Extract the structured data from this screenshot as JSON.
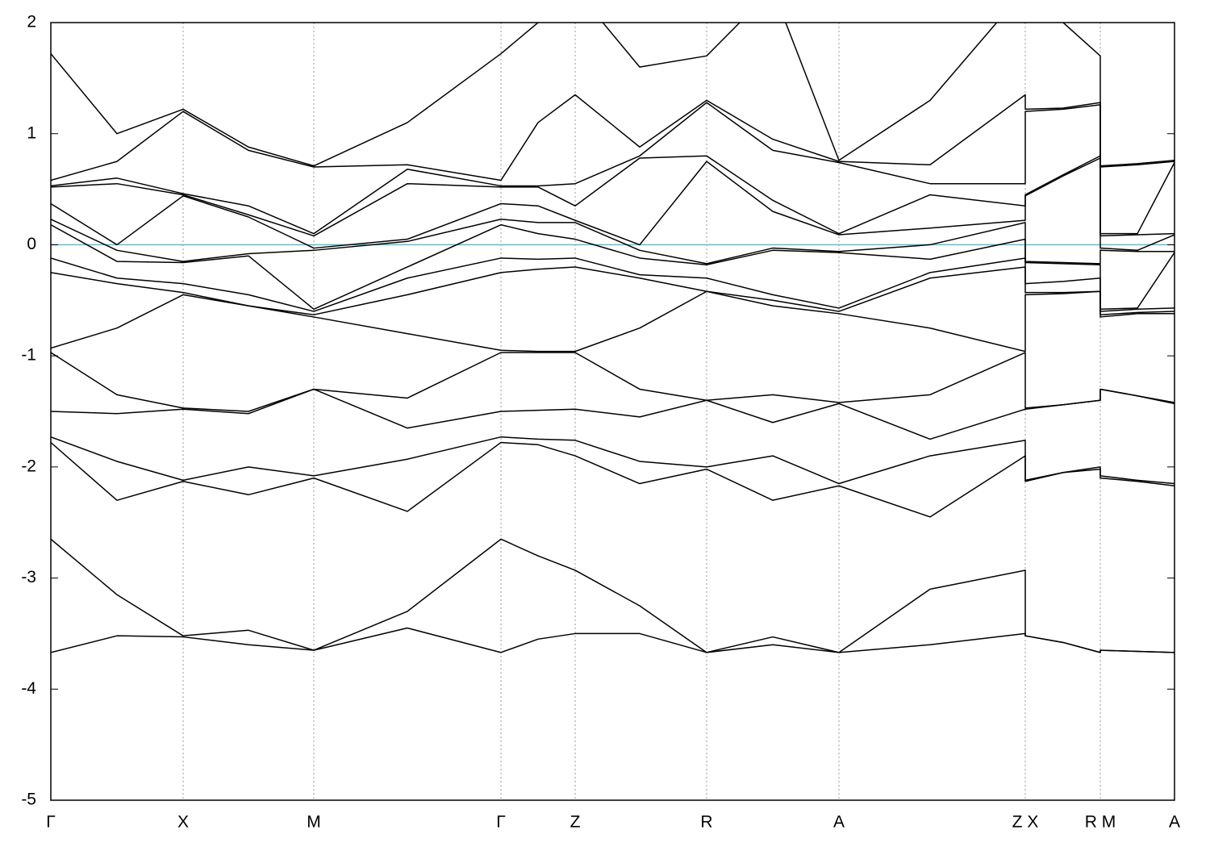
{
  "chart_data": {
    "type": "line",
    "x": [
      0,
      0.82,
      1.64,
      2.45,
      3.26,
      4.42,
      5.58,
      6.04,
      6.5,
      7.3,
      8.13,
      8.95,
      9.77,
      10.9,
      12.08,
      12.08,
      12.55,
      13.01,
      13.01,
      13.47,
      13.93
    ],
    "xlim": [
      0,
      13.93
    ],
    "xticks": [
      {
        "value": 0,
        "label": "Γ"
      },
      {
        "value": 1.64,
        "label": "X"
      },
      {
        "value": 3.26,
        "label": "M"
      },
      {
        "value": 5.58,
        "label": "Γ"
      },
      {
        "value": 6.5,
        "label": "Z"
      },
      {
        "value": 8.13,
        "label": "R"
      },
      {
        "value": 9.77,
        "label": "A"
      },
      {
        "value": 12.08,
        "label": "Z X"
      },
      {
        "value": 13.01,
        "label": "R M"
      },
      {
        "value": 13.93,
        "label": "A"
      }
    ],
    "ylim": [
      -5,
      2
    ],
    "yticks": [
      -5,
      -4,
      -3,
      -2,
      -1,
      0,
      1,
      2
    ],
    "xgrid": true,
    "fermi_level": {
      "y": 0,
      "color": "#6bb7c8"
    },
    "series": [
      {
        "color": "#000000",
        "values": [
          -3.67,
          -3.52,
          -3.53,
          -3.6,
          -3.65,
          -3.45,
          -3.67,
          -3.55,
          -3.5,
          -3.5,
          -3.67,
          -3.6,
          -3.67,
          -3.6,
          -3.5,
          -3.52,
          -3.58,
          -3.67,
          -3.65,
          -3.66,
          -3.67
        ]
      },
      {
        "color": "#000000",
        "values": [
          -2.65,
          -3.15,
          -3.52,
          -3.47,
          -3.65,
          -3.3,
          -2.65,
          -2.8,
          -2.93,
          -3.25,
          -3.67,
          -3.53,
          -3.67,
          -3.1,
          -2.93,
          -3.52,
          -3.58,
          -3.67,
          -3.65,
          -3.66,
          -3.67
        ]
      },
      {
        "color": "#000000",
        "values": [
          -1.78,
          -2.3,
          -2.13,
          -2.25,
          -2.1,
          -2.4,
          -1.78,
          -1.8,
          -1.9,
          -2.15,
          -2.02,
          -2.3,
          -2.17,
          -2.45,
          -1.9,
          -2.13,
          -2.05,
          -2.02,
          -2.1,
          -2.13,
          -2.17
        ]
      },
      {
        "color": "#000000",
        "values": [
          -1.73,
          -1.95,
          -2.12,
          -2.0,
          -2.08,
          -1.93,
          -1.73,
          -1.75,
          -1.76,
          -1.95,
          -2.0,
          -1.9,
          -2.15,
          -1.9,
          -1.76,
          -2.12,
          -2.05,
          -2.0,
          -2.08,
          -2.12,
          -2.15
        ]
      },
      {
        "color": "#000000",
        "values": [
          -1.5,
          -1.52,
          -1.48,
          -1.52,
          -1.3,
          -1.65,
          -1.5,
          -1.49,
          -1.48,
          -1.55,
          -1.4,
          -1.6,
          -1.43,
          -1.75,
          -1.48,
          -1.48,
          -1.44,
          -1.4,
          -1.3,
          -1.36,
          -1.43
        ]
      },
      {
        "color": "#000000",
        "values": [
          -0.97,
          -1.35,
          -1.47,
          -1.5,
          -1.3,
          -1.38,
          -0.97,
          -0.97,
          -0.97,
          -1.3,
          -1.4,
          -1.35,
          -1.42,
          -1.35,
          -0.97,
          -1.47,
          -1.44,
          -1.4,
          -1.3,
          -1.36,
          -1.42
        ]
      },
      {
        "color": "#000000",
        "values": [
          -0.93,
          -0.75,
          -0.45,
          -0.55,
          -0.65,
          -0.8,
          -0.95,
          -0.96,
          -0.96,
          -0.75,
          -0.42,
          -0.55,
          -0.62,
          -0.75,
          -0.96,
          -0.45,
          -0.44,
          -0.42,
          -0.65,
          -0.62,
          -0.62
        ]
      },
      {
        "color": "#000000",
        "values": [
          -0.25,
          -0.35,
          -0.43,
          -0.55,
          -0.63,
          -0.45,
          -0.25,
          -0.22,
          -0.2,
          -0.3,
          -0.42,
          -0.5,
          -0.6,
          -0.3,
          -0.2,
          -0.43,
          -0.43,
          -0.42,
          -0.63,
          -0.61,
          -0.6
        ]
      },
      {
        "color": "#000000",
        "values": [
          -0.12,
          -0.3,
          -0.35,
          -0.45,
          -0.6,
          -0.3,
          -0.12,
          -0.13,
          -0.12,
          -0.27,
          -0.3,
          -0.45,
          -0.57,
          -0.25,
          -0.12,
          -0.35,
          -0.33,
          -0.3,
          -0.6,
          -0.58,
          -0.57
        ]
      },
      {
        "color": "#000000",
        "values": [
          0.18,
          -0.15,
          -0.16,
          -0.1,
          -0.58,
          -0.2,
          0.18,
          0.1,
          0.05,
          -0.12,
          -0.18,
          -0.05,
          -0.07,
          -0.13,
          0.05,
          -0.16,
          -0.17,
          -0.18,
          -0.58,
          -0.57,
          -0.07
        ]
      },
      {
        "color": "#000000",
        "values": [
          0.23,
          -0.05,
          -0.15,
          -0.08,
          -0.05,
          0.03,
          0.23,
          0.2,
          0.2,
          -0.05,
          -0.17,
          -0.03,
          -0.06,
          0.0,
          0.2,
          -0.15,
          -0.16,
          -0.17,
          -0.05,
          -0.06,
          -0.06
        ]
      },
      {
        "color": "#000000",
        "values": [
          0.37,
          0.0,
          0.44,
          0.25,
          -0.03,
          0.05,
          0.37,
          0.35,
          0.22,
          0.0,
          0.75,
          0.3,
          0.09,
          0.15,
          0.22,
          0.44,
          0.62,
          0.78,
          -0.03,
          -0.05,
          0.09
        ]
      },
      {
        "color": "#000000",
        "values": [
          0.52,
          0.55,
          0.45,
          0.27,
          0.08,
          0.55,
          0.52,
          0.52,
          0.35,
          0.78,
          0.8,
          0.4,
          0.1,
          0.45,
          0.35,
          0.45,
          0.63,
          0.8,
          0.08,
          0.09,
          0.1
        ]
      },
      {
        "color": "#000000",
        "values": [
          0.53,
          0.6,
          0.46,
          0.35,
          0.1,
          0.68,
          0.53,
          0.53,
          0.55,
          0.8,
          1.28,
          0.85,
          0.74,
          0.55,
          0.55,
          1.2,
          1.22,
          1.26,
          0.1,
          0.1,
          0.74
        ]
      },
      {
        "color": "#000000",
        "values": [
          0.58,
          0.75,
          1.2,
          0.85,
          0.7,
          0.72,
          0.58,
          1.1,
          1.35,
          0.88,
          1.3,
          0.95,
          0.75,
          0.72,
          1.35,
          1.22,
          1.23,
          1.28,
          0.7,
          0.72,
          0.75
        ]
      },
      {
        "color": "#000000",
        "values": [
          1.72,
          1.0,
          1.22,
          0.88,
          0.71,
          1.1,
          1.72,
          2.0,
          2.3,
          1.6,
          1.7,
          2.3,
          0.76,
          1.3,
          2.3,
          2.3,
          2.0,
          1.7,
          0.71,
          0.73,
          0.76
        ]
      }
    ]
  }
}
